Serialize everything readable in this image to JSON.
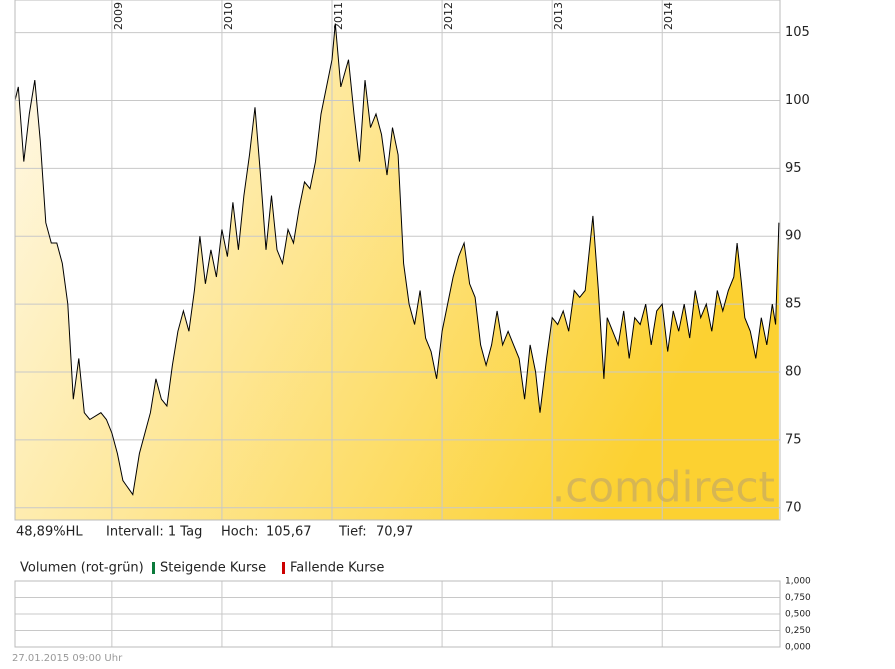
{
  "chart_data": [
    {
      "type": "area",
      "x": [
        2008.12,
        2008.15,
        2008.2,
        2008.25,
        2008.3,
        2008.35,
        2008.4,
        2008.45,
        2008.5,
        2008.55,
        2008.6,
        2008.65,
        2008.7,
        2008.75,
        2008.8,
        2008.9,
        2008.95,
        2009.0,
        2009.05,
        2009.1,
        2009.19,
        2009.25,
        2009.3,
        2009.35,
        2009.4,
        2009.45,
        2009.5,
        2009.55,
        2009.6,
        2009.65,
        2009.7,
        2009.75,
        2009.8,
        2009.85,
        2009.9,
        2009.95,
        2010.0,
        2010.05,
        2010.1,
        2010.15,
        2010.2,
        2010.25,
        2010.3,
        2010.35,
        2010.4,
        2010.45,
        2010.5,
        2010.55,
        2010.6,
        2010.65,
        2010.7,
        2010.75,
        2010.8,
        2010.85,
        2010.9,
        2010.95,
        2011.0,
        2011.03,
        2011.08,
        2011.15,
        2011.2,
        2011.25,
        2011.3,
        2011.35,
        2011.4,
        2011.45,
        2011.5,
        2011.55,
        2011.6,
        2011.65,
        2011.7,
        2011.75,
        2011.8,
        2011.85,
        2011.9,
        2011.95,
        2012.0,
        2012.05,
        2012.1,
        2012.15,
        2012.2,
        2012.25,
        2012.3,
        2012.35,
        2012.4,
        2012.45,
        2012.5,
        2012.55,
        2012.6,
        2012.65,
        2012.7,
        2012.75,
        2012.8,
        2012.85,
        2012.89,
        2012.95,
        2013.0,
        2013.05,
        2013.1,
        2013.15,
        2013.2,
        2013.25,
        2013.3,
        2013.37,
        2013.42,
        2013.47,
        2013.5,
        2013.55,
        2013.6,
        2013.65,
        2013.7,
        2013.75,
        2013.8,
        2013.85,
        2013.9,
        2013.95,
        2014.0,
        2014.05,
        2014.1,
        2014.15,
        2014.2,
        2014.25,
        2014.3,
        2014.35,
        2014.4,
        2014.45,
        2014.5,
        2014.55,
        2014.6,
        2014.65,
        2014.68,
        2014.72,
        2014.75,
        2014.8,
        2014.85,
        2014.9,
        2014.95,
        2015.0,
        2015.03,
        2015.06
      ],
      "values": [
        100,
        101,
        95.5,
        99,
        101.5,
        97,
        91,
        89.5,
        89.5,
        88,
        85,
        78,
        81,
        77,
        76.5,
        77,
        76.5,
        75.5,
        74,
        72,
        70.97,
        74,
        75.5,
        77,
        79.5,
        78,
        77.5,
        80.5,
        83,
        84.5,
        83,
        86,
        90,
        86.5,
        89,
        87,
        90.5,
        88.5,
        92.5,
        89,
        93,
        96,
        99.5,
        94.5,
        89,
        93,
        89,
        88,
        90.5,
        89.5,
        92,
        94,
        93.5,
        95.5,
        99,
        101,
        103,
        105.67,
        101,
        103,
        99,
        95.5,
        101.5,
        98,
        99,
        97.5,
        94.5,
        98,
        96,
        88,
        85,
        83.5,
        86,
        82.5,
        81.5,
        79.5,
        83,
        85,
        87,
        88.5,
        89.5,
        86.5,
        85.5,
        82,
        80.5,
        82,
        84.5,
        82,
        83,
        82,
        81,
        78,
        82,
        80,
        77,
        81,
        84,
        83.5,
        84.5,
        83,
        86,
        85.5,
        86,
        91.5,
        86,
        79.5,
        84,
        83,
        82,
        84.5,
        81,
        84,
        83.5,
        85,
        82,
        84.5,
        85,
        81.5,
        84.5,
        83,
        85,
        82.5,
        86,
        84,
        85,
        83,
        86,
        84.5,
        86,
        87,
        89.5,
        86.5,
        84,
        83,
        81,
        84,
        82,
        85,
        83.5,
        91
      ],
      "color": "#000000",
      "fill_colors": [
        "#fff9ea",
        "#fcd131"
      ],
      "xlim": [
        2008.12,
        2015.07
      ],
      "xticks": [
        2009,
        2010,
        2011,
        2012,
        2013,
        2014
      ],
      "ylim": [
        69.1,
        107.4
      ],
      "yticks": [
        70,
        75,
        80,
        85,
        90,
        95,
        100,
        105
      ],
      "grid": true
    },
    {
      "type": "bar",
      "title": "Volumen (rot-grün)",
      "series": [
        {
          "name": "Steigende Kurse",
          "color": "#0b7a3b",
          "values": []
        },
        {
          "name": "Fallende Kurse",
          "color": "#cc0000",
          "values": []
        }
      ],
      "xlim": [
        2008.12,
        2015.07
      ],
      "xticks": [
        2009,
        2010,
        2011,
        2012,
        2013,
        2014
      ],
      "ylim": [
        0,
        1
      ],
      "yticks": [
        {
          "value": 1,
          "label": "1,000"
        },
        {
          "value": 0.75,
          "label": "0,750"
        },
        {
          "value": 0.5,
          "label": "0,500"
        },
        {
          "value": 0.25,
          "label": "0,250"
        },
        {
          "value": 0,
          "label": "0,000"
        }
      ],
      "grid": true
    }
  ],
  "info": {
    "range": "48,89%HL",
    "interval": "Intervall: 1 Tag",
    "high_label": "Hoch:",
    "high": "105,67",
    "low_label": "Tief:",
    "low": "70,97"
  },
  "timestamp": "27.01.2015 09:00 Uhr",
  "watermark": ".comdirect"
}
